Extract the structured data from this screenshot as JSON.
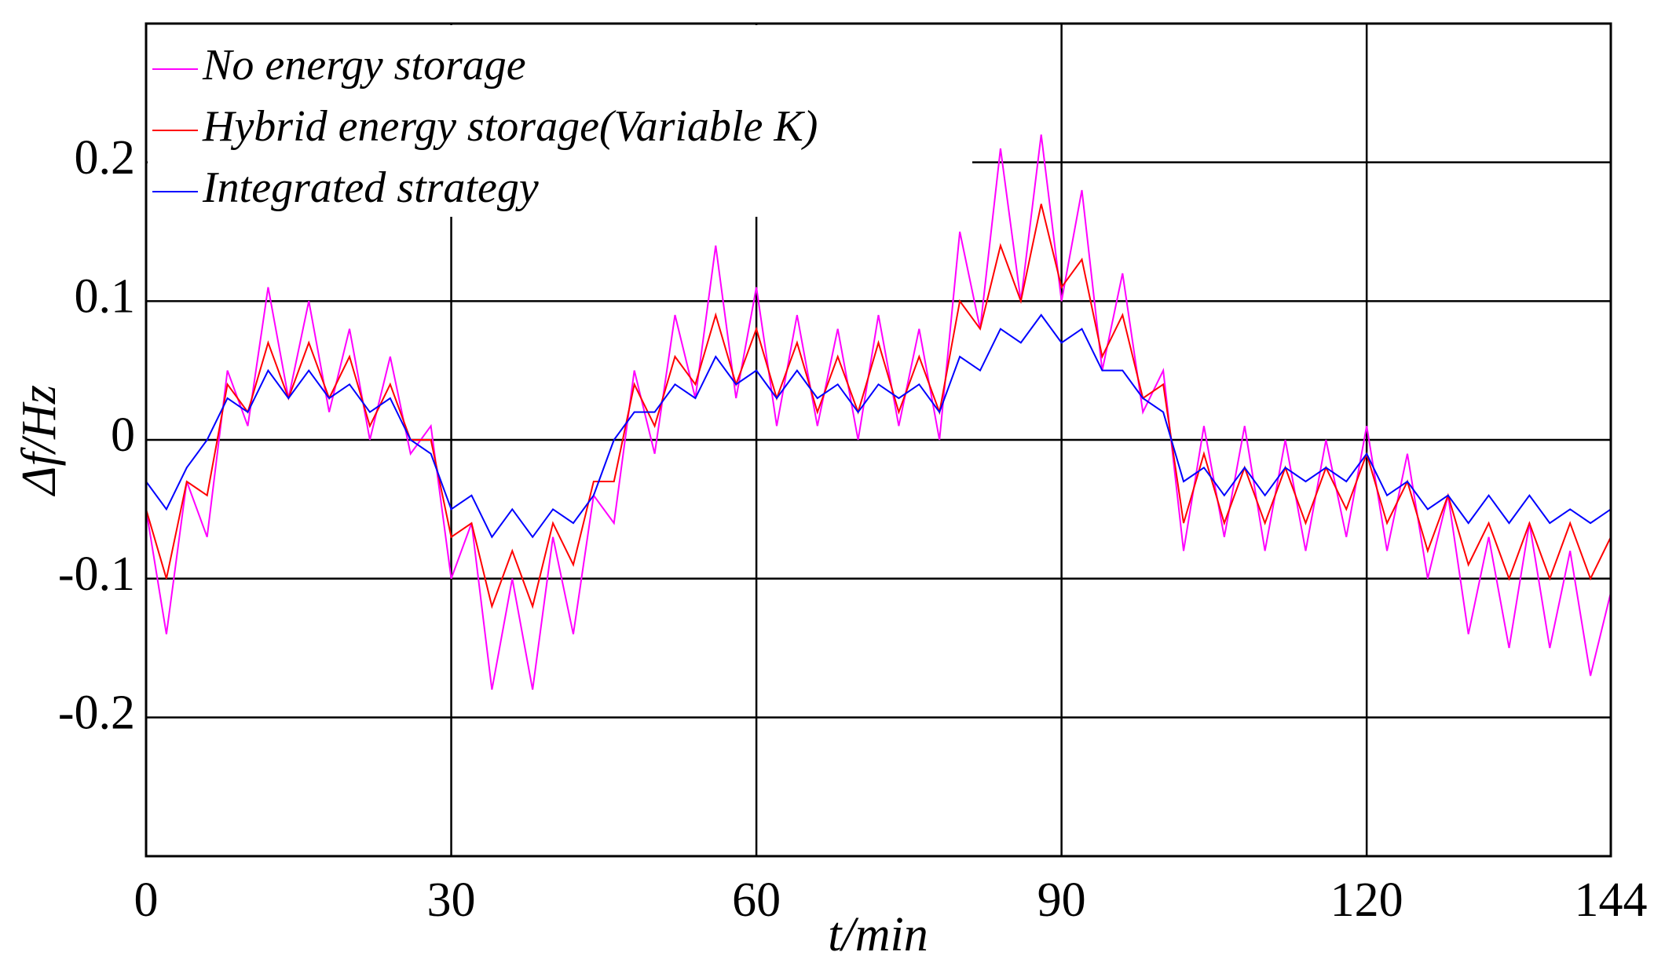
{
  "chart_data": {
    "type": "line",
    "x_label": "t/min",
    "y_label": "Δf/Hz",
    "xlim": [
      0,
      144
    ],
    "xticks": [
      0,
      30,
      60,
      90,
      120,
      144
    ],
    "ylim": [
      -0.3,
      0.3
    ],
    "yticks": [
      -0.2,
      -0.1,
      0,
      0.1,
      0.2
    ],
    "grid": true,
    "legend": "upper left",
    "x": [
      0,
      2,
      4,
      6,
      8,
      10,
      12,
      14,
      16,
      18,
      20,
      22,
      24,
      26,
      28,
      30,
      32,
      34,
      36,
      38,
      40,
      42,
      44,
      46,
      48,
      50,
      52,
      54,
      56,
      58,
      60,
      62,
      64,
      66,
      68,
      70,
      72,
      74,
      76,
      78,
      80,
      82,
      84,
      86,
      88,
      90,
      92,
      94,
      96,
      98,
      100,
      102,
      104,
      106,
      108,
      110,
      112,
      114,
      116,
      118,
      120,
      122,
      124,
      126,
      128,
      130,
      132,
      134,
      136,
      138,
      140,
      142,
      144
    ],
    "series": [
      {
        "name": "No energy storage",
        "color": "#ff00ff",
        "values": [
          -0.05,
          -0.14,
          -0.03,
          -0.07,
          0.05,
          0.01,
          0.11,
          0.03,
          0.1,
          0.02,
          0.08,
          0.0,
          0.06,
          -0.01,
          0.01,
          -0.1,
          -0.06,
          -0.18,
          -0.1,
          -0.18,
          -0.07,
          -0.14,
          -0.04,
          -0.06,
          0.05,
          -0.01,
          0.09,
          0.03,
          0.14,
          0.03,
          0.11,
          0.01,
          0.09,
          0.01,
          0.08,
          0.0,
          0.09,
          0.01,
          0.08,
          0.0,
          0.15,
          0.08,
          0.21,
          0.1,
          0.22,
          0.1,
          0.18,
          0.05,
          0.12,
          0.02,
          0.05,
          -0.08,
          0.01,
          -0.07,
          0.01,
          -0.08,
          0.0,
          -0.08,
          0.0,
          -0.07,
          0.01,
          -0.08,
          -0.01,
          -0.1,
          -0.04,
          -0.14,
          -0.07,
          -0.15,
          -0.06,
          -0.15,
          -0.08,
          -0.17,
          -0.11
        ]
      },
      {
        "name": "Hybrid energy storage(Variable K)",
        "color": "#ff0000",
        "values": [
          -0.05,
          -0.1,
          -0.03,
          -0.04,
          0.04,
          0.02,
          0.07,
          0.03,
          0.07,
          0.03,
          0.06,
          0.01,
          0.04,
          0.0,
          0.0,
          -0.07,
          -0.06,
          -0.12,
          -0.08,
          -0.12,
          -0.06,
          -0.09,
          -0.03,
          -0.03,
          0.04,
          0.01,
          0.06,
          0.04,
          0.09,
          0.04,
          0.08,
          0.03,
          0.07,
          0.02,
          0.06,
          0.02,
          0.07,
          0.02,
          0.06,
          0.02,
          0.1,
          0.08,
          0.14,
          0.1,
          0.17,
          0.11,
          0.13,
          0.06,
          0.09,
          0.03,
          0.04,
          -0.06,
          -0.01,
          -0.06,
          -0.02,
          -0.06,
          -0.02,
          -0.06,
          -0.02,
          -0.05,
          -0.01,
          -0.06,
          -0.03,
          -0.08,
          -0.04,
          -0.09,
          -0.06,
          -0.1,
          -0.06,
          -0.1,
          -0.06,
          -0.1,
          -0.07
        ]
      },
      {
        "name": "Integrated strategy",
        "color": "#0000ff",
        "values": [
          -0.03,
          -0.05,
          -0.02,
          0.0,
          0.03,
          0.02,
          0.05,
          0.03,
          0.05,
          0.03,
          0.04,
          0.02,
          0.03,
          0.0,
          -0.01,
          -0.05,
          -0.04,
          -0.07,
          -0.05,
          -0.07,
          -0.05,
          -0.06,
          -0.04,
          0.0,
          0.02,
          0.02,
          0.04,
          0.03,
          0.06,
          0.04,
          0.05,
          0.03,
          0.05,
          0.03,
          0.04,
          0.02,
          0.04,
          0.03,
          0.04,
          0.02,
          0.06,
          0.05,
          0.08,
          0.07,
          0.09,
          0.07,
          0.08,
          0.05,
          0.05,
          0.03,
          0.02,
          -0.03,
          -0.02,
          -0.04,
          -0.02,
          -0.04,
          -0.02,
          -0.03,
          -0.02,
          -0.03,
          -0.01,
          -0.04,
          -0.03,
          -0.05,
          -0.04,
          -0.06,
          -0.04,
          -0.06,
          -0.04,
          -0.06,
          -0.05,
          -0.06,
          -0.05
        ]
      }
    ]
  }
}
